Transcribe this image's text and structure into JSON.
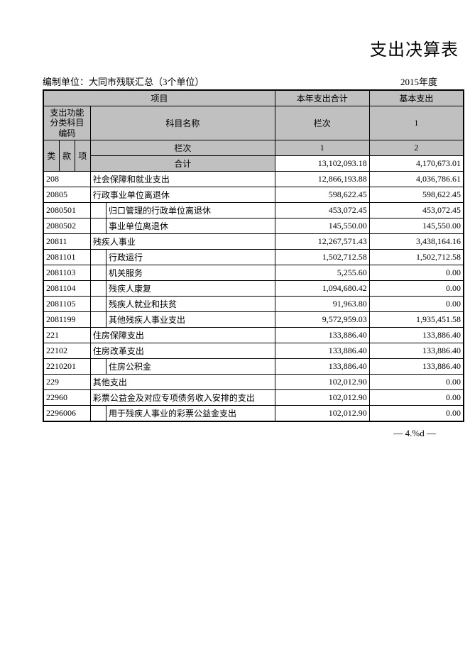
{
  "title": "支出决算表",
  "org": "编制单位：大同市残联汇总（3个单位）",
  "year": "2015年度",
  "header": {
    "project": "项目",
    "code": "支出功能分类科目编码",
    "name": "科目名称",
    "col1": "本年支出合计",
    "col2": "基本支出",
    "row_label": "栏次",
    "lei": "类",
    "kuan": "款",
    "xiang": "项",
    "sum": "合计",
    "c1": "1",
    "c2": "2"
  },
  "rows": [
    {
      "code": "",
      "indent": 0,
      "name": "",
      "v1": "13,102,093.18",
      "v2": "4,170,673.01",
      "is_total": true
    },
    {
      "code": "208",
      "indent": 0,
      "name": "社会保障和就业支出",
      "v1": "12,866,193.88",
      "v2": "4,036,786.61"
    },
    {
      "code": "20805",
      "indent": 0,
      "name": "行政事业单位离退休",
      "v1": "598,622.45",
      "v2": "598,622.45"
    },
    {
      "code": "2080501",
      "indent": 1,
      "name": "归口管理的行政单位离退休",
      "v1": "453,072.45",
      "v2": "453,072.45"
    },
    {
      "code": "2080502",
      "indent": 1,
      "name": "事业单位离退休",
      "v1": "145,550.00",
      "v2": "145,550.00"
    },
    {
      "code": "20811",
      "indent": 0,
      "name": "残疾人事业",
      "v1": "12,267,571.43",
      "v2": "3,438,164.16"
    },
    {
      "code": "2081101",
      "indent": 1,
      "name": "行政运行",
      "v1": "1,502,712.58",
      "v2": "1,502,712.58"
    },
    {
      "code": "2081103",
      "indent": 1,
      "name": "机关服务",
      "v1": "5,255.60",
      "v2": "0.00"
    },
    {
      "code": "2081104",
      "indent": 1,
      "name": "残疾人康复",
      "v1": "1,094,680.42",
      "v2": "0.00"
    },
    {
      "code": "2081105",
      "indent": 1,
      "name": "残疾人就业和扶贫",
      "v1": "91,963.80",
      "v2": "0.00"
    },
    {
      "code": "2081199",
      "indent": 1,
      "name": "其他残疾人事业支出",
      "v1": "9,572,959.03",
      "v2": "1,935,451.58"
    },
    {
      "code": "221",
      "indent": 0,
      "name": "住房保障支出",
      "v1": "133,886.40",
      "v2": "133,886.40"
    },
    {
      "code": "22102",
      "indent": 0,
      "name": "住房改革支出",
      "v1": "133,886.40",
      "v2": "133,886.40"
    },
    {
      "code": "2210201",
      "indent": 1,
      "name": "住房公积金",
      "v1": "133,886.40",
      "v2": "133,886.40"
    },
    {
      "code": "229",
      "indent": 0,
      "name": "其他支出",
      "v1": "102,012.90",
      "v2": "0.00"
    },
    {
      "code": "22960",
      "indent": 0,
      "name": "彩票公益金及对应专项债务收入安排的支出",
      "v1": "102,012.90",
      "v2": "0.00"
    },
    {
      "code": "2296006",
      "indent": 1,
      "name": "用于残疾人事业的彩票公益金支出",
      "v1": "102,012.90",
      "v2": "0.00"
    }
  ],
  "footer": "— 4.%d —",
  "colors": {
    "header_bg": "#c0c0c0",
    "border": "#000000",
    "bg": "#ffffff"
  }
}
